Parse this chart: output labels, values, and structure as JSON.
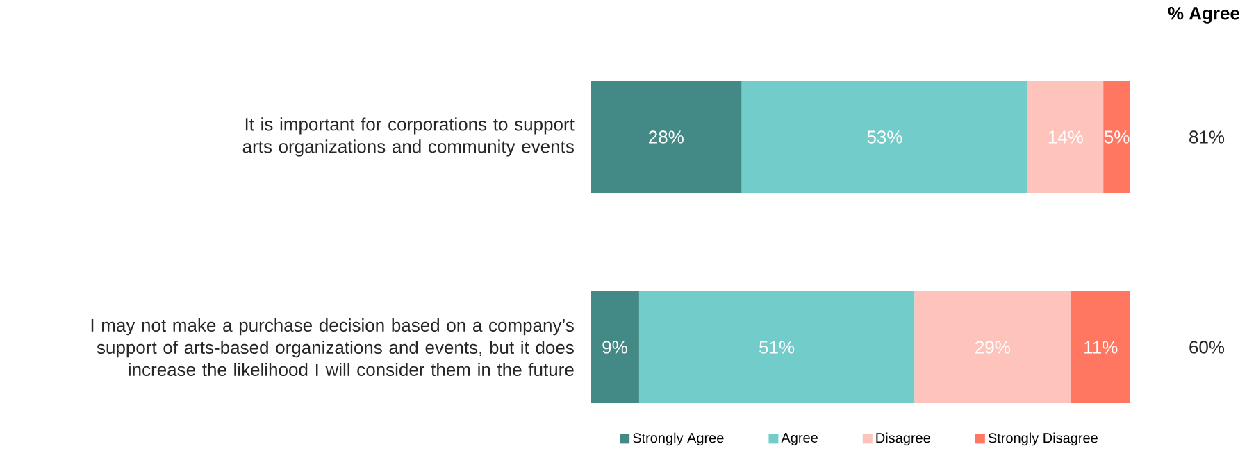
{
  "chart_data": {
    "type": "bar",
    "orientation": "horizontal",
    "stacked": true,
    "categories": [
      "It is important for corporations to support arts organizations and community events",
      "I may not make a purchase decision based on a company’s support of arts-based organizations and events, but it does increase the likelihood I will consider them in the future"
    ],
    "series": [
      {
        "name": "Strongly Agree",
        "color": "#438a86",
        "values": [
          28,
          9
        ],
        "value_labels": [
          "28%",
          "9%"
        ]
      },
      {
        "name": "Agree",
        "color": "#72cdca",
        "values": [
          53,
          51
        ],
        "value_labels": [
          "53%",
          "51%"
        ]
      },
      {
        "name": "Disagree",
        "color": "#fec4bb",
        "values": [
          14,
          29
        ],
        "value_labels": [
          "14%",
          "29%"
        ]
      },
      {
        "name": "Strongly Disagree",
        "color": "#ff7761",
        "values": [
          5,
          11
        ],
        "value_labels": [
          "5%",
          "11%"
        ]
      }
    ],
    "annotations": [
      "% Agree",
      "81%",
      "60%"
    ],
    "legend": "bottom"
  }
}
